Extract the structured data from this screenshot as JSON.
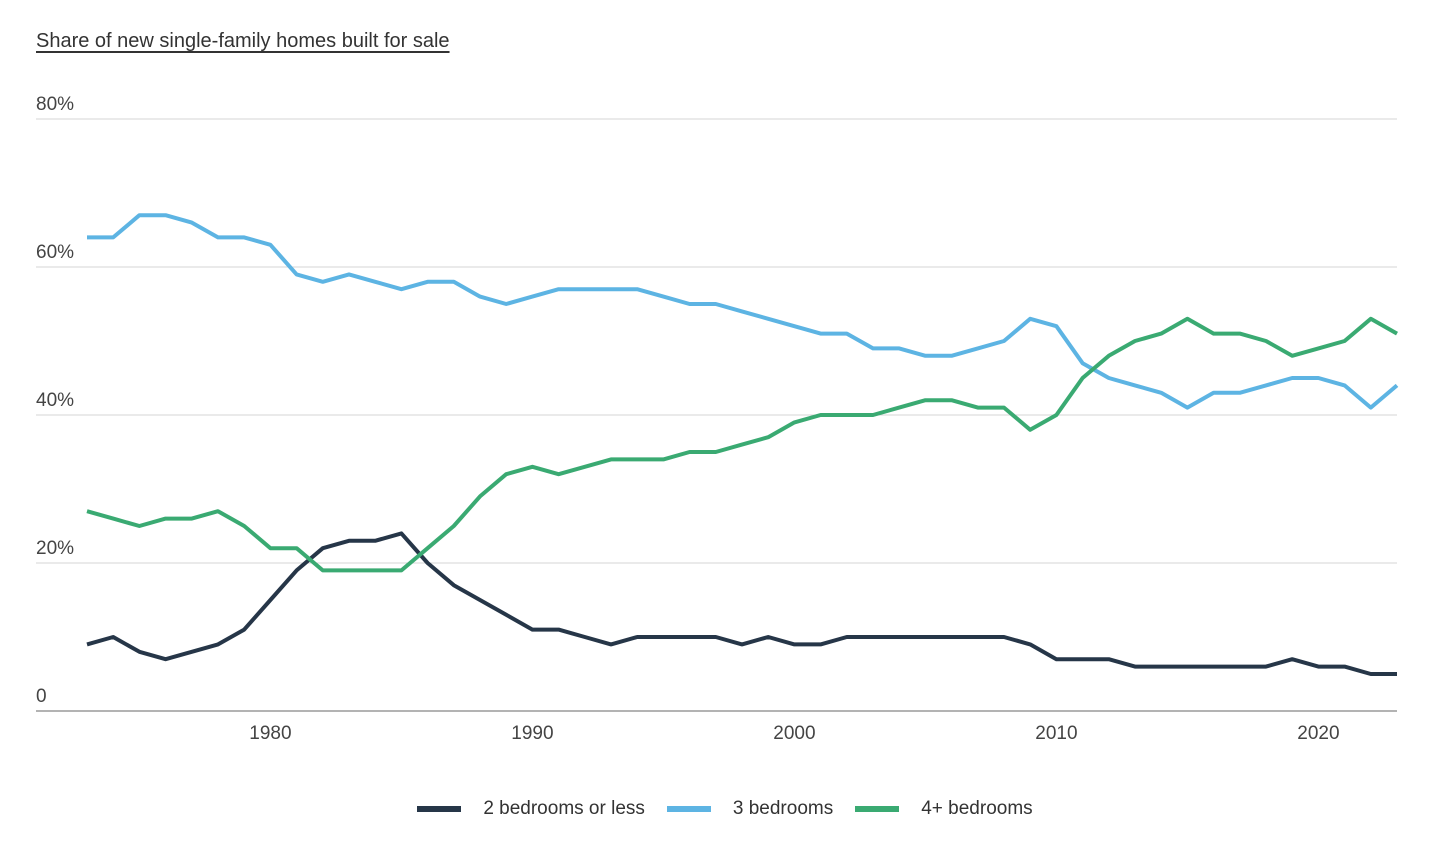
{
  "title": "Share of new single-family homes built for sale",
  "chart_data": {
    "type": "line",
    "title": "Share of new single-family homes built for sale",
    "xlabel": "",
    "ylabel": "",
    "xlim": [
      1973,
      2023
    ],
    "ylim": [
      0,
      80
    ],
    "grid": true,
    "legend_position": "bottom",
    "x_ticks": [
      1980,
      1990,
      2000,
      2010,
      2020
    ],
    "x_tick_labels": [
      "1980",
      "1990",
      "2000",
      "2010",
      "2020"
    ],
    "y_ticks": [
      0,
      20,
      40,
      60,
      80
    ],
    "y_tick_labels": [
      "0",
      "20%",
      "40%",
      "60%",
      "80%"
    ],
    "x": [
      1973,
      1974,
      1975,
      1976,
      1977,
      1978,
      1979,
      1980,
      1981,
      1982,
      1983,
      1984,
      1985,
      1986,
      1987,
      1988,
      1989,
      1990,
      1991,
      1992,
      1993,
      1994,
      1995,
      1996,
      1997,
      1998,
      1999,
      2000,
      2001,
      2002,
      2003,
      2004,
      2005,
      2006,
      2007,
      2008,
      2009,
      2010,
      2011,
      2012,
      2013,
      2014,
      2015,
      2016,
      2017,
      2018,
      2019,
      2020,
      2021,
      2022,
      2023
    ],
    "series": [
      {
        "name": "2 bedrooms or less",
        "color": "#263648",
        "values": [
          9,
          10,
          8,
          7,
          8,
          9,
          11,
          15,
          19,
          22,
          23,
          23,
          24,
          20,
          17,
          15,
          13,
          11,
          11,
          10,
          9,
          10,
          10,
          10,
          10,
          9,
          10,
          9,
          9,
          10,
          10,
          10,
          10,
          10,
          10,
          10,
          9,
          7,
          7,
          7,
          6,
          6,
          6,
          6,
          6,
          6,
          7,
          6,
          6,
          5,
          5
        ]
      },
      {
        "name": "3 bedrooms",
        "color": "#5db4e3",
        "values": [
          64,
          64,
          67,
          67,
          66,
          64,
          64,
          63,
          59,
          58,
          59,
          58,
          57,
          58,
          58,
          56,
          55,
          56,
          57,
          57,
          57,
          57,
          56,
          55,
          55,
          54,
          53,
          52,
          51,
          51,
          49,
          49,
          48,
          48,
          49,
          50,
          53,
          52,
          47,
          45,
          44,
          43,
          41,
          43,
          43,
          44,
          45,
          45,
          44,
          41,
          44
        ]
      },
      {
        "name": "4+ bedrooms",
        "color": "#3aaa72",
        "values": [
          27,
          26,
          25,
          26,
          26,
          27,
          25,
          22,
          22,
          19,
          19,
          19,
          19,
          22,
          25,
          29,
          32,
          33,
          32,
          33,
          34,
          34,
          34,
          35,
          35,
          36,
          37,
          39,
          40,
          40,
          40,
          41,
          42,
          42,
          41,
          41,
          38,
          40,
          45,
          48,
          50,
          51,
          53,
          51,
          51,
          50,
          48,
          49,
          50,
          53,
          51
        ]
      }
    ]
  }
}
